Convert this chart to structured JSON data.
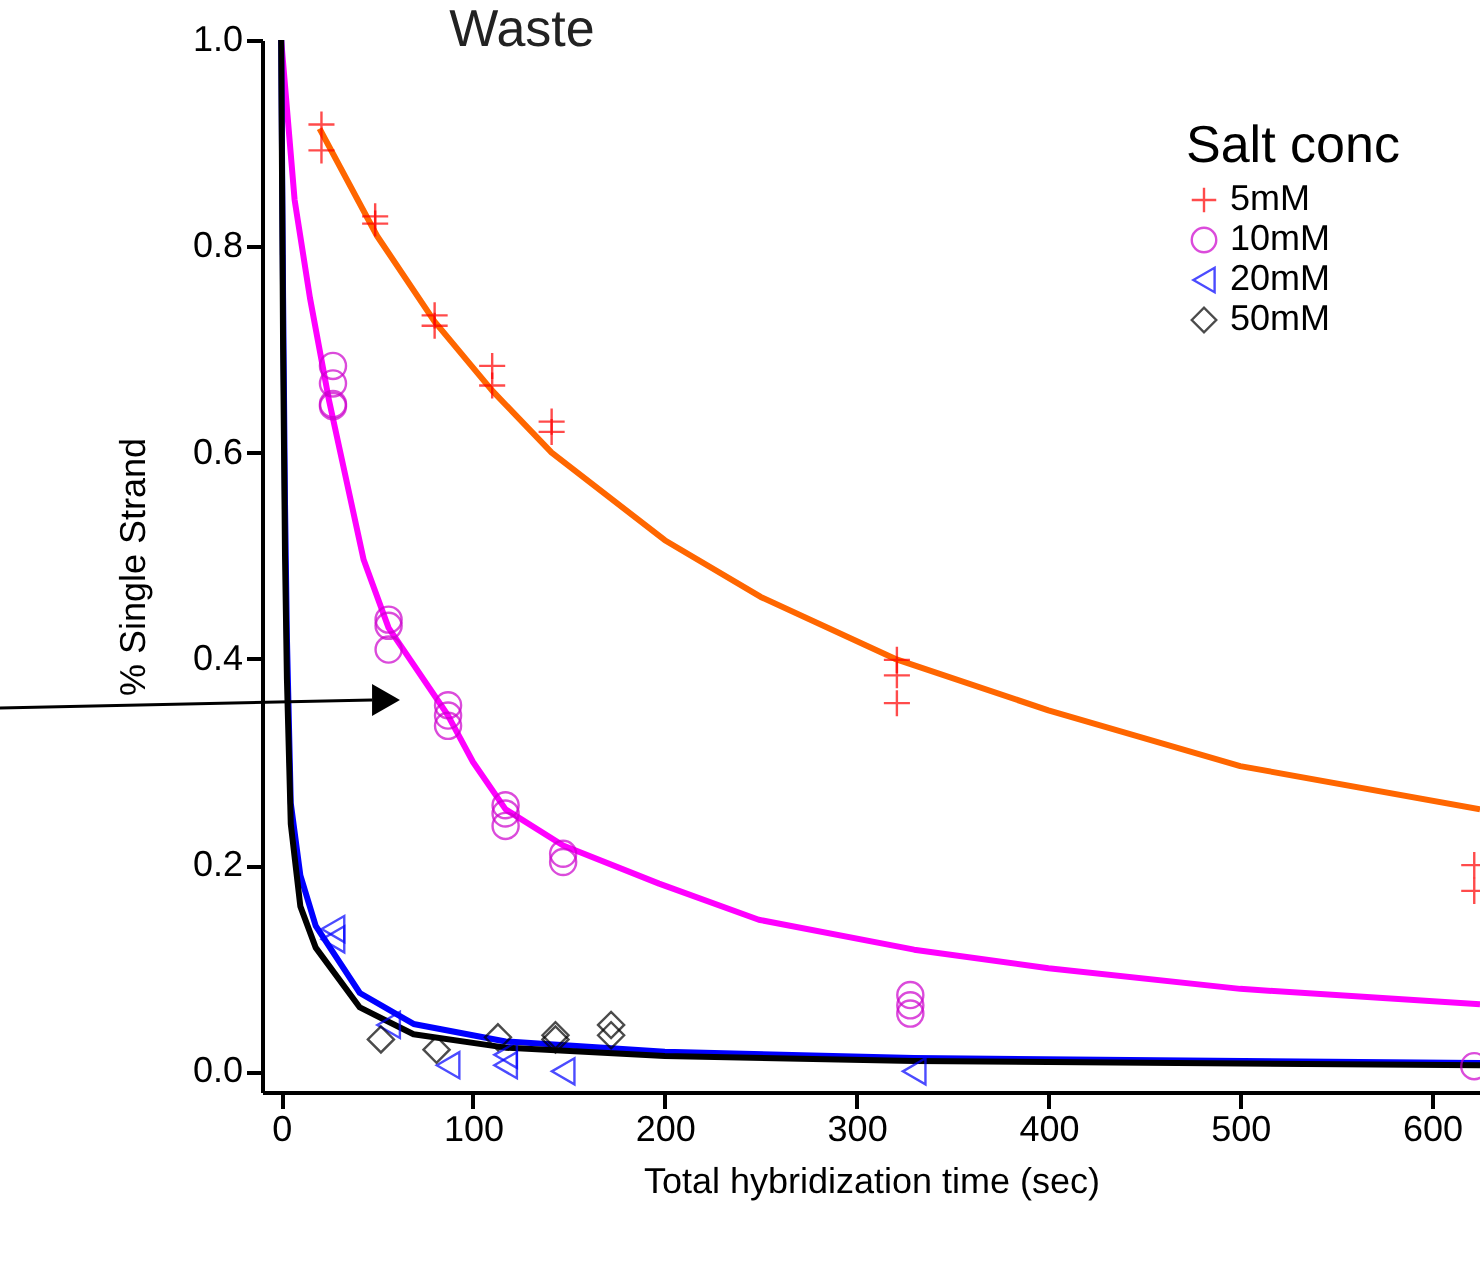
{
  "chart_data": {
    "type": "scatter",
    "xlabel": "Total hybridization time (sec)",
    "ylabel": "% Single Strand",
    "legend_title": "Salt conc",
    "legend": "top right",
    "grid": false,
    "annotations": [
      "Waste"
    ],
    "xlim": [
      -10,
      625
    ],
    "xticks": [
      0,
      100,
      200,
      300,
      400,
      500,
      600
    ],
    "ylim": [
      -0.02,
      1.0
    ],
    "yticks": [
      {
        "value": 0,
        "label": "0.0"
      },
      {
        "value": 0.2,
        "label": "0.2"
      },
      {
        "value": 0.4,
        "label": "0.4"
      },
      {
        "value": 0.6,
        "label": "0.6"
      },
      {
        "value": 0.8,
        "label": "0.8"
      },
      {
        "value": 1.0,
        "label": "1.0"
      }
    ],
    "series": [
      {
        "type": "line",
        "color": "#ff6600",
        "x": [
          20,
          50,
          80,
          110,
          141,
          200,
          250,
          320,
          400,
          500,
          625
        ],
        "values": [
          0.914,
          0.81,
          0.727,
          0.66,
          0.6,
          0.515,
          0.46,
          0.4,
          0.35,
          0.296,
          0.254
        ]
      },
      {
        "type": "line",
        "color": "#ff00ff",
        "x": [
          0,
          7,
          15,
          25,
          43,
          56,
          87,
          100,
          117,
          147,
          197,
          249,
          330,
          400,
          500,
          625
        ],
        "values": [
          1.0,
          0.845,
          0.75,
          0.65,
          0.496,
          0.43,
          0.345,
          0.3,
          0.254,
          0.219,
          0.182,
          0.147,
          0.118,
          0.1,
          0.08,
          0.065
        ]
      },
      {
        "type": "line",
        "color": "#0000ff",
        "x": [
          0,
          1,
          2,
          3,
          5,
          10,
          18,
          41,
          69,
          117,
          200,
          330,
          625
        ],
        "values": [
          1.0,
          0.75,
          0.55,
          0.42,
          0.26,
          0.19,
          0.141,
          0.076,
          0.046,
          0.029,
          0.019,
          0.013,
          0.008
        ]
      },
      {
        "type": "line",
        "color": "#000000",
        "x": [
          0,
          1,
          2,
          3,
          5,
          10,
          18,
          41,
          69,
          117,
          200,
          330,
          625
        ],
        "values": [
          1.0,
          0.7,
          0.5,
          0.38,
          0.24,
          0.16,
          0.12,
          0.062,
          0.036,
          0.023,
          0.015,
          0.01,
          0.006
        ]
      },
      {
        "name": "5mM",
        "marker": "cross",
        "color": "#ff0000",
        "x": [
          21,
          21,
          49,
          49,
          80,
          80,
          110,
          110,
          141,
          141,
          321,
          321,
          321,
          622,
          622
        ],
        "values": [
          0.918,
          0.893,
          0.829,
          0.822,
          0.733,
          0.723,
          0.684,
          0.665,
          0.63,
          0.62,
          0.399,
          0.384,
          0.357,
          0.2,
          0.175
        ]
      },
      {
        "name": "10mM",
        "marker": "circle",
        "color": "#cc00cc",
        "x": [
          27,
          27,
          27,
          27,
          56,
          56,
          56,
          87,
          87,
          87,
          117,
          117,
          117,
          147,
          147,
          328,
          328,
          328,
          622
        ],
        "values": [
          0.684,
          0.667,
          0.647,
          0.645,
          0.438,
          0.432,
          0.409,
          0.355,
          0.345,
          0.335,
          0.258,
          0.25,
          0.238,
          0.211,
          0.203,
          0.074,
          0.064,
          0.056,
          0.005
        ]
      },
      {
        "name": "20mM",
        "marker": "triangle",
        "color": "#0000ff",
        "x": [
          27,
          27,
          56,
          87,
          117,
          117,
          147,
          330
        ],
        "values": [
          0.138,
          0.128,
          0.045,
          0.006,
          0.016,
          0.006,
          0.0,
          0.0
        ]
      },
      {
        "name": "50mM",
        "marker": "diamond",
        "color": "#000000",
        "x": [
          52,
          81,
          113,
          143,
          143,
          172,
          172
        ],
        "values": [
          0.031,
          0.021,
          0.033,
          0.035,
          0.031,
          0.045,
          0.035
        ]
      }
    ]
  }
}
